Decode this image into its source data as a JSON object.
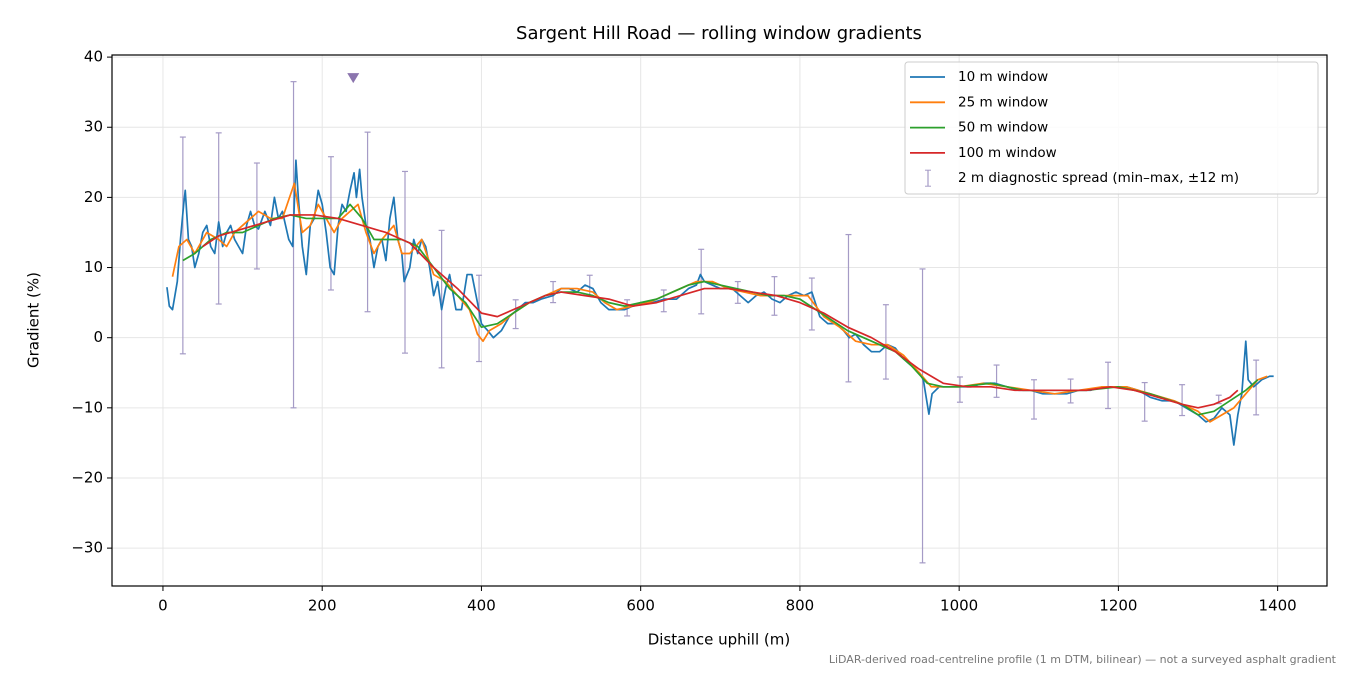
{
  "chart_data": {
    "type": "line",
    "title": "Sargent Hill Road — rolling window gradients",
    "x_label": "Distance uphill (m)",
    "y_label": "Gradient (%)",
    "footnote": "LiDAR-derived road-centreline profile (1 m DTM, bilinear) — not a surveyed asphalt gradient",
    "xlim": [
      -64,
      1462
    ],
    "ylim": [
      -35.4,
      40.3
    ],
    "xticks": [
      0,
      200,
      400,
      600,
      800,
      1000,
      1200,
      1400
    ],
    "yticks": [
      {
        "value": -30,
        "label": "−30"
      },
      {
        "value": -20,
        "label": "−20"
      },
      {
        "value": -10,
        "label": "−10"
      },
      0,
      10,
      20,
      30,
      40
    ],
    "grid": true,
    "legend": "upper right",
    "series": [
      {
        "name": "10 m window",
        "color": "#1f77b4",
        "x": [
          5,
          8,
          12,
          18,
          22,
          26,
          28,
          32,
          36,
          40,
          45,
          50,
          55,
          60,
          65,
          70,
          75,
          80,
          85,
          90,
          95,
          100,
          105,
          110,
          115,
          120,
          128,
          135,
          140,
          145,
          150,
          158,
          163,
          167,
          170,
          175,
          180,
          185,
          190,
          195,
          200,
          205,
          210,
          215,
          220,
          225,
          230,
          235,
          240,
          243,
          247,
          250,
          255,
          260,
          265,
          270,
          275,
          280,
          285,
          290,
          295,
          300,
          303,
          310,
          315,
          320,
          325,
          330,
          335,
          340,
          345,
          350,
          355,
          360,
          368,
          375,
          382,
          388,
          395,
          400,
          408,
          415,
          425,
          435,
          445,
          455,
          465,
          475,
          490,
          500,
          510,
          520,
          530,
          540,
          550,
          560,
          570,
          580,
          590,
          600,
          615,
          630,
          645,
          660,
          670,
          675,
          680,
          690,
          700,
          715,
          725,
          735,
          745,
          755,
          765,
          775,
          785,
          795,
          805,
          815,
          825,
          835,
          845,
          855,
          862,
          870,
          880,
          890,
          900,
          910,
          920,
          930,
          940,
          950,
          955,
          962,
          966,
          975,
          985,
          1000,
          1015,
          1030,
          1045,
          1060,
          1075,
          1090,
          1105,
          1120,
          1135,
          1150,
          1165,
          1180,
          1195,
          1210,
          1225,
          1240,
          1255,
          1270,
          1285,
          1300,
          1310,
          1320,
          1330,
          1340,
          1345,
          1350,
          1355,
          1360,
          1363,
          1370,
          1380,
          1390,
          1395
        ],
        "values": [
          7.2,
          4.5,
          4,
          8,
          14,
          19,
          21,
          14,
          13,
          10,
          12,
          15,
          16,
          13,
          12,
          16.5,
          13,
          15,
          16,
          14,
          13,
          12,
          16,
          18,
          16,
          15.5,
          18,
          16,
          20,
          17,
          18,
          14,
          13,
          25.3,
          20,
          13,
          9,
          16,
          17,
          21,
          19,
          15,
          10,
          9,
          16,
          19,
          18,
          21,
          23.5,
          20,
          24,
          20,
          16,
          14,
          10,
          13,
          14,
          11,
          17,
          20,
          14,
          12,
          8,
          10,
          14,
          12,
          14,
          13,
          10,
          6,
          8,
          4,
          7,
          9,
          4,
          4,
          9,
          9,
          5,
          2,
          1,
          0,
          1,
          3,
          4,
          5,
          5,
          5.5,
          6,
          7,
          7,
          6.5,
          7.5,
          7,
          5,
          4,
          4,
          4,
          4.5,
          5,
          5,
          5.5,
          5.5,
          7,
          7.5,
          9,
          8,
          7.5,
          7,
          7,
          6,
          5,
          6,
          6.5,
          5.5,
          5,
          6,
          6.5,
          6,
          6.5,
          3,
          2,
          2,
          1,
          0,
          0.5,
          -1,
          -2,
          -2,
          -1,
          -1.5,
          -3,
          -4,
          -5,
          -6,
          -10.9,
          -8,
          -7,
          -7,
          -7,
          -7,
          -6.5,
          -6.5,
          -7,
          -7.5,
          -7.5,
          -8,
          -8,
          -8,
          -7.5,
          -7.5,
          -7,
          -7,
          -7,
          -7.5,
          -8.5,
          -9,
          -9,
          -10,
          -11,
          -12,
          -11.5,
          -10,
          -11,
          -15.3,
          -11,
          -8,
          -0.5,
          -6,
          -7,
          -6,
          -5.5,
          -5.5
        ]
      },
      {
        "name": "25 m window",
        "color": "#ff7f0e",
        "x": [
          12,
          20,
          30,
          40,
          55,
          70,
          80,
          90,
          100,
          110,
          120,
          135,
          150,
          165,
          175,
          185,
          195,
          205,
          215,
          225,
          235,
          245,
          255,
          265,
          275,
          290,
          300,
          310,
          325,
          340,
          355,
          370,
          385,
          395,
          402,
          410,
          425,
          440,
          460,
          480,
          500,
          520,
          540,
          555,
          570,
          590,
          610,
          630,
          650,
          670,
          690,
          710,
          730,
          750,
          770,
          790,
          810,
          830,
          850,
          870,
          890,
          910,
          930,
          950,
          965,
          980,
          1000,
          1030,
          1060,
          1090,
          1120,
          1150,
          1180,
          1210,
          1240,
          1270,
          1300,
          1315,
          1330,
          1345,
          1360,
          1375,
          1387
        ],
        "values": [
          8.7,
          13,
          14,
          12,
          15,
          14,
          13,
          15,
          16,
          17,
          18,
          17,
          17,
          22,
          15,
          16,
          19,
          17,
          15,
          17,
          18,
          19,
          15,
          12,
          14,
          16,
          12,
          12,
          14,
          9,
          8,
          6,
          4,
          0.5,
          -0.5,
          1,
          2,
          3.5,
          5,
          6,
          7,
          7,
          6.5,
          5,
          4,
          4.5,
          5,
          6,
          7,
          8,
          8,
          7,
          6.5,
          6,
          6,
          6,
          6,
          3,
          1.5,
          -0.5,
          -1,
          -1,
          -2.5,
          -5,
          -7,
          -7,
          -7,
          -6.5,
          -7,
          -7.5,
          -8,
          -7.5,
          -7,
          -7,
          -8,
          -9,
          -10.5,
          -12,
          -11,
          -10,
          -8,
          -6,
          -5.5
        ]
      },
      {
        "name": "50 m window",
        "color": "#2ca02c",
        "x": [
          25,
          40,
          60,
          80,
          100,
          120,
          140,
          160,
          180,
          200,
          220,
          235,
          250,
          265,
          280,
          300,
          320,
          340,
          360,
          380,
          400,
          420,
          440,
          460,
          480,
          500,
          520,
          540,
          560,
          580,
          600,
          620,
          640,
          660,
          680,
          700,
          720,
          740,
          760,
          780,
          800,
          820,
          840,
          860,
          880,
          900,
          920,
          940,
          960,
          980,
          1000,
          1040,
          1080,
          1120,
          1160,
          1200,
          1240,
          1280,
          1300,
          1320,
          1340,
          1360,
          1375
        ],
        "values": [
          11,
          12,
          14,
          15,
          15,
          16,
          17,
          17.5,
          17,
          17,
          17,
          19,
          17,
          14,
          14,
          14,
          13,
          10,
          7,
          5,
          1.5,
          2,
          3.5,
          5,
          6,
          6.5,
          6.5,
          6,
          5,
          4.5,
          5,
          5.5,
          6.5,
          7.5,
          8,
          7.5,
          7,
          6.5,
          6,
          6,
          5.5,
          4,
          2.5,
          1,
          0,
          -1,
          -2,
          -4,
          -6.5,
          -7,
          -7,
          -6.5,
          -7.5,
          -7.5,
          -7.5,
          -7,
          -8,
          -9.5,
          -11,
          -10.5,
          -9,
          -7.5,
          -6
        ]
      },
      {
        "name": "100 m window",
        "color": "#d62728",
        "x": [
          50,
          70,
          100,
          130,
          160,
          190,
          220,
          250,
          280,
          310,
          340,
          370,
          400,
          420,
          440,
          460,
          480,
          500,
          530,
          560,
          590,
          620,
          650,
          680,
          710,
          740,
          770,
          800,
          830,
          860,
          890,
          920,
          950,
          980,
          1010,
          1040,
          1070,
          1100,
          1130,
          1160,
          1190,
          1220,
          1250,
          1280,
          1300,
          1320,
          1340,
          1350
        ],
        "values": [
          13,
          14.5,
          15.5,
          16.5,
          17.5,
          17.5,
          17,
          16,
          15,
          13.5,
          10,
          7,
          3.5,
          3,
          4,
          5,
          6,
          6.5,
          6,
          5.5,
          4.5,
          5,
          6,
          7,
          7,
          6.5,
          6,
          5,
          3.5,
          1.5,
          0,
          -2,
          -4.5,
          -6.5,
          -7,
          -7,
          -7.5,
          -7.5,
          -7.5,
          -7.5,
          -7,
          -7.5,
          -8.5,
          -9.5,
          -10,
          -9.5,
          -8.5,
          -7.5
        ]
      }
    ],
    "errorbars": {
      "name": "2 m diagnostic spread (min–max, ±12 m)",
      "color": "#a59bc6",
      "x": [
        25,
        70,
        118,
        164,
        211,
        257,
        304,
        350,
        397,
        443,
        490,
        536,
        583,
        629,
        676,
        722,
        768,
        815,
        861,
        908,
        954,
        1001,
        1047,
        1094,
        1140,
        1187,
        1233,
        1280,
        1326,
        1373
      ],
      "low": [
        -2.3,
        4.8,
        9.8,
        -10,
        6.8,
        3.7,
        -2.2,
        -4.3,
        -3.4,
        1.3,
        5,
        6,
        3.1,
        3.7,
        3.4,
        4.9,
        3.2,
        1.1,
        -6.3,
        -5.9,
        -32.1,
        -9.2,
        -8.5,
        -11.6,
        -9.3,
        -10.1,
        -11.9,
        -11.1,
        -9.4,
        -11
      ],
      "high": [
        28.6,
        29.2,
        24.9,
        36.5,
        25.8,
        29.3,
        23.7,
        15.3,
        8.9,
        5.4,
        8,
        8.9,
        5.4,
        6.8,
        12.6,
        8,
        8.7,
        8.5,
        14.7,
        4.7,
        9.8,
        -5.6,
        -3.9,
        -6,
        -5.9,
        -3.5,
        -6.4,
        -6.7,
        -8.2,
        -3.2
      ]
    },
    "markers": [
      {
        "x": 239,
        "y": 37,
        "color": "#8b75ae"
      }
    ]
  }
}
